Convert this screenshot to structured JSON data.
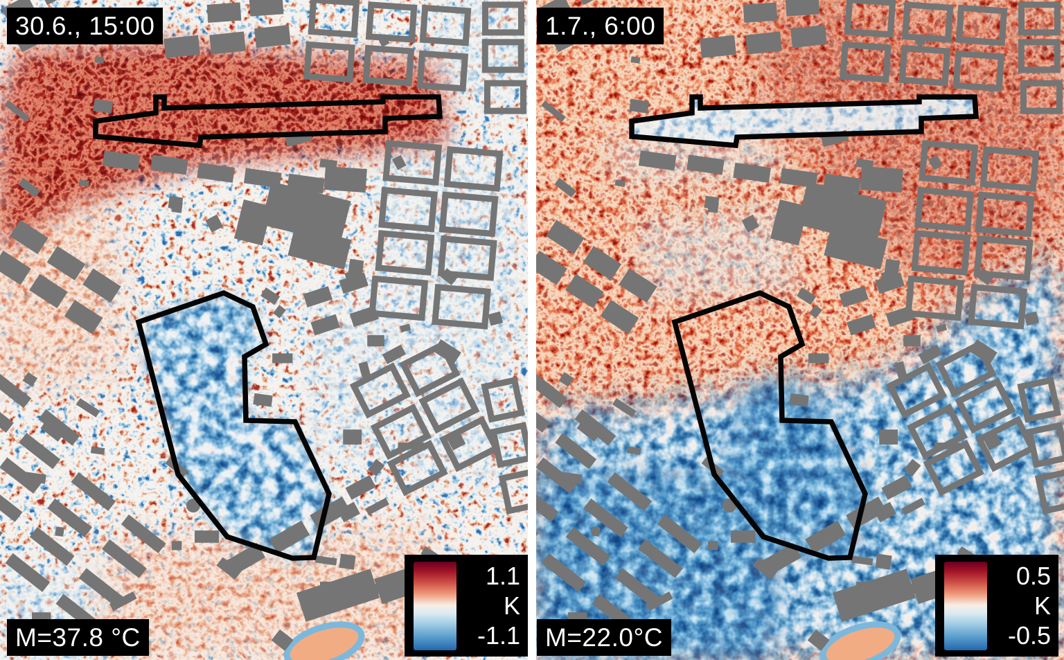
{
  "panels": [
    {
      "id": "afternoon",
      "time_label": "30.6., 15:00",
      "mean_label": "M=37.8 °C",
      "colorbar": {
        "max": "1.1",
        "unit": "K",
        "min": "-1.1"
      }
    },
    {
      "id": "morning",
      "time_label": "1.7., 6:00",
      "mean_label": "M=22.0°C",
      "colorbar": {
        "max": "0.5",
        "unit": "K",
        "min": "-0.5"
      }
    }
  ],
  "colors": {
    "building_gray": "#757575",
    "study_area_outline": "#050505",
    "label_background": "#000000",
    "label_text": "#ffffff",
    "colorbar_top_red": "#67001f",
    "colorbar_mid_white": "#f8ede4",
    "colorbar_bottom_blue": "#2267ad",
    "panel_divider": "#ffffff"
  },
  "annotations": {
    "corridor_polygon": "138,175 225,163 225,140 237,140 237,156 553,147 553,140 633,140 635,168 556,171 556,190 290,198 288,210 138,197",
    "park_polygon": "200,465 323,423 365,443 384,497 353,515 355,607 426,609 475,713 453,805 422,806 328,775 257,685"
  }
}
